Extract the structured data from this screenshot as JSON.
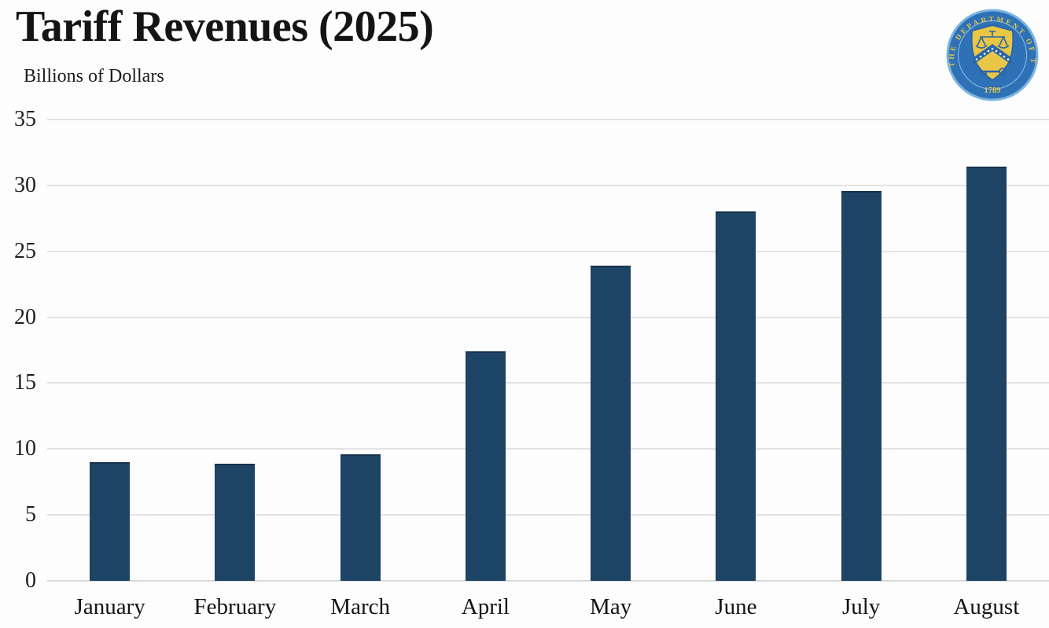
{
  "header": {
    "title": "Tariff Revenues (2025)",
    "subtitle": "Billions of Dollars"
  },
  "seal": {
    "ring_text": "THE DEPARTMENT OF THE TREASURY",
    "year": "1789",
    "colors": {
      "ring_blue": "#2e71b6",
      "rim_light_blue": "#7ab3df",
      "gold": "#e9c645",
      "detail_blue": "#2a66a8"
    }
  },
  "chart_data": {
    "type": "bar",
    "title": "Tariff Revenues (2025)",
    "ylabel": "Billions of Dollars",
    "categories": [
      "January",
      "February",
      "March",
      "April",
      "May",
      "June",
      "July",
      "August"
    ],
    "values": [
      9.0,
      8.9,
      9.6,
      17.4,
      23.9,
      28.0,
      29.6,
      31.4
    ],
    "ylim": [
      0,
      35
    ],
    "yticks": [
      0,
      5,
      10,
      15,
      20,
      25,
      30,
      35
    ],
    "grid": true,
    "legend": "none",
    "bar_color": "#1d4365",
    "gridline_color": "#e2e2e2",
    "tick_color": "#1f1f1f"
  }
}
